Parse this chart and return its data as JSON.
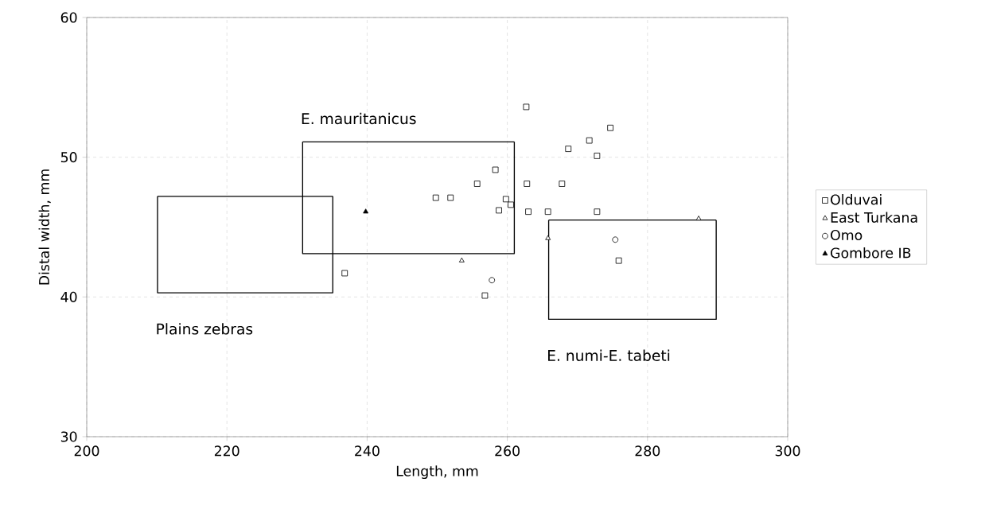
{
  "chart_data": {
    "type": "scatter",
    "xlabel": "Length, mm",
    "ylabel": "Distal width, mm",
    "xlim": [
      200,
      300
    ],
    "ylim": [
      30,
      60
    ],
    "xticks": [
      200,
      220,
      240,
      260,
      280,
      300
    ],
    "yticks": [
      30,
      40,
      50,
      60
    ],
    "grid": true,
    "legend": "right",
    "series": [
      {
        "name": "Olduvai",
        "color": "#000000",
        "marker": "square",
        "x": [
          236.8,
          249.8,
          251.9,
          255.7,
          258.3,
          258.8,
          259.8,
          260.5,
          262.7,
          262.8,
          263,
          265.8,
          267.8,
          268.7,
          271.7,
          272.8,
          274.7,
          272.8,
          275.9,
          256.8
        ],
        "values": [
          41.7,
          47.1,
          47.1,
          48.1,
          49.1,
          46.2,
          47,
          46.6,
          53.6,
          48.1,
          46.1,
          46.1,
          48.1,
          50.6,
          51.2,
          50.1,
          52.1,
          46.1,
          42.6,
          40.1
        ]
      },
      {
        "name": "East Turkana",
        "color": "#000000",
        "marker": "triangle",
        "x": [
          253.5,
          265.8,
          287.3
        ],
        "values": [
          42.6,
          44.2,
          45.6
        ]
      },
      {
        "name": "Omo",
        "color": "#000000",
        "marker": "circle",
        "x": [
          257.8,
          275.4
        ],
        "values": [
          41.2,
          44.1
        ]
      },
      {
        "name": "Gombore IB",
        "color": "#000000",
        "marker": "triangle",
        "x": [
          239.8
        ],
        "values": [
          46.1
        ]
      },
      {
        "type": "line",
        "color": "#000000",
        "marker": "none",
        "x": [
          210.1,
          210.1,
          235.1,
          235.1
        ],
        "values": [
          47.2,
          40.3,
          40.3,
          47.2
        ]
      },
      {
        "type": "line",
        "color": "#000000",
        "marker": "none",
        "x": [
          210.1,
          235.1
        ],
        "values": [
          47.2,
          47.2
        ]
      },
      {
        "type": "line",
        "color": "#000000",
        "marker": "none",
        "x": [
          230.8,
          230.8,
          261,
          261
        ],
        "values": [
          51.1,
          43.1,
          43.1,
          51.1
        ]
      },
      {
        "type": "line",
        "color": "#000000",
        "marker": "none",
        "x": [
          230.8,
          261
        ],
        "values": [
          51.1,
          51.1
        ]
      },
      {
        "type": "line",
        "color": "#000000",
        "marker": "none",
        "x": [
          265.9,
          265.9,
          289.8,
          289.8
        ],
        "values": [
          45.5,
          38.4,
          38.4,
          45.5
        ]
      },
      {
        "type": "line",
        "color": "#000000",
        "marker": "none",
        "x": [
          265.9,
          289.8
        ],
        "values": [
          45.5,
          45.5
        ]
      }
    ],
    "annotations": [
      "Plains zebras",
      "E. mauritanicus",
      "E. numi-E. tabeti"
    ]
  }
}
